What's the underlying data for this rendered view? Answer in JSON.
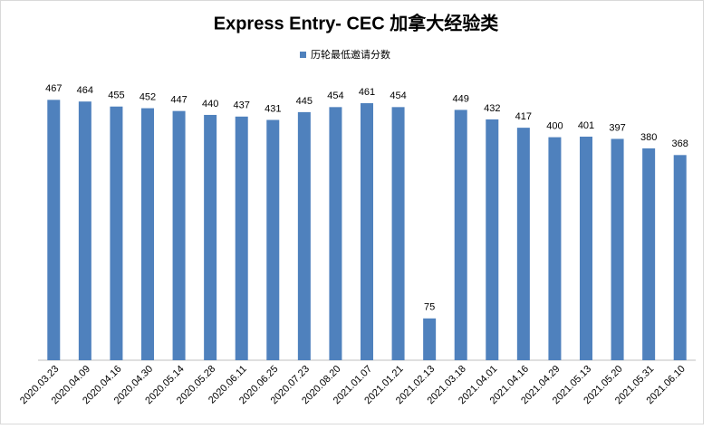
{
  "chart_data": {
    "type": "bar",
    "title": "Express Entry- CEC 加拿大经验类",
    "categories": [
      "2020.03.23",
      "2020.04.09",
      "2020.04.16",
      "2020.04.30",
      "2020.05.14",
      "2020.05.28",
      "2020.06.11",
      "2020.06.25",
      "2020.07.23",
      "2020.08.20",
      "2021.01.07",
      "2021.01.21",
      "2021.02.13",
      "2021.03.18",
      "2021.04.01",
      "2021.04.16",
      "2021.04.29",
      "2021.05.13",
      "2021.05.20",
      "2021.05.31",
      "2021.06.10"
    ],
    "series": [
      {
        "name": "历轮最低邀请分数",
        "color": "#4f81bd",
        "values": [
          467,
          464,
          455,
          452,
          447,
          440,
          437,
          431,
          445,
          454,
          461,
          454,
          75,
          449,
          432,
          417,
          400,
          401,
          397,
          380,
          368
        ]
      }
    ],
    "ylim": [
      0,
      500
    ],
    "grid": false,
    "legend": "top"
  }
}
